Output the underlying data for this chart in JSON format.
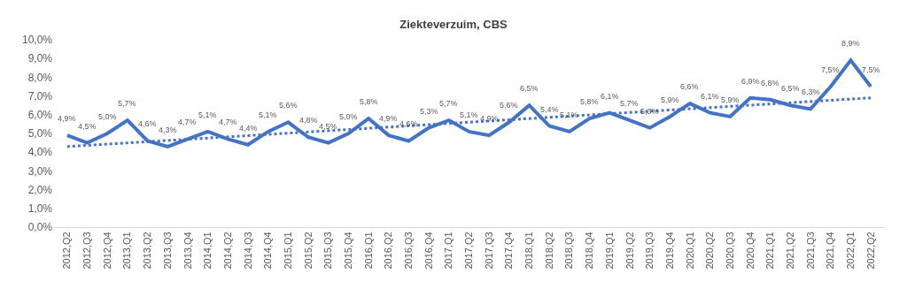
{
  "chart_data": {
    "type": "line",
    "title": "Ziekteverzuim, CBS",
    "categories": [
      "2012,Q2",
      "2012,Q3",
      "2012,Q4",
      "2013,Q1",
      "2013,Q2",
      "2013,Q3",
      "2013,Q4",
      "2014,Q1",
      "2014,Q2",
      "2014,Q3",
      "2014,Q4",
      "2015,Q1",
      "2015,Q2",
      "2015,Q3",
      "2015,Q4",
      "2016,Q1",
      "2016,Q2",
      "2016,Q3",
      "2016,Q4",
      "2017,Q1",
      "2017,Q2",
      "2017,Q3",
      "2017,Q4",
      "2018,Q1",
      "2018,Q2",
      "2018,Q3",
      "2018,Q4",
      "2019,Q1",
      "2019,Q2",
      "2019,Q3",
      "2019,Q4",
      "2020,Q1",
      "2020,Q2",
      "2020,Q3",
      "2020,Q4",
      "2021,Q1",
      "2021,Q2",
      "2021,Q3",
      "2021,Q4",
      "2022,Q1",
      "2022,Q2"
    ],
    "series": [
      {
        "color": "#4472c4",
        "line_style": "solid",
        "values": [
          4.9,
          4.5,
          5.0,
          5.7,
          4.6,
          4.3,
          4.7,
          5.1,
          4.7,
          4.4,
          5.1,
          5.6,
          4.8,
          4.5,
          5.0,
          5.8,
          4.9,
          4.6,
          5.3,
          5.7,
          5.1,
          4.9,
          5.6,
          6.5,
          5.4,
          5.1,
          5.8,
          6.1,
          5.7,
          5.3,
          5.9,
          6.6,
          6.1,
          5.9,
          6.9,
          6.8,
          6.5,
          6.3,
          7.5,
          8.9,
          7.5
        ],
        "value_labels": [
          "4,9%",
          "4,5%",
          "5,0%",
          "5,7%",
          "4,6%",
          "4,3%",
          "4,7%",
          "5,1%",
          "4,7%",
          "4,4%",
          "5,1%",
          "5,6%",
          "4,8%",
          "4,5%",
          "5,0%",
          "5,8%",
          "4,9%",
          "4,6%",
          "5,3%",
          "5,7%",
          "5,1%",
          "4,9%",
          "5,6%",
          "6,5%",
          "5,4%",
          "5,1%",
          "5,8%",
          "6,1%",
          "5,7%",
          "5,3%",
          "5,9%",
          "6,6%",
          "6,1%",
          "5,9%",
          "6,9%",
          "6,8%",
          "6,5%",
          "6,3%",
          "7,5%",
          "8,9%",
          "7,5%"
        ]
      },
      {
        "type": "line",
        "color": "#4472c4",
        "line_style": "dotted",
        "x": [
          "2012,Q2",
          "2022,Q2"
        ],
        "values": [
          4.3,
          6.9
        ]
      }
    ],
    "ylim": [
      0,
      10
    ],
    "yticks": [
      {
        "value": 0,
        "label": "0,0%"
      },
      {
        "value": 1,
        "label": "1,0%"
      },
      {
        "value": 2,
        "label": "2,0%"
      },
      {
        "value": 3,
        "label": "3,0%"
      },
      {
        "value": 4,
        "label": "4,0%"
      },
      {
        "value": 5,
        "label": "5,0%"
      },
      {
        "value": 6,
        "label": "6,0%"
      },
      {
        "value": 7,
        "label": "7,0%"
      },
      {
        "value": 8,
        "label": "8,0%"
      },
      {
        "value": 9,
        "label": "9,0%"
      },
      {
        "value": 10,
        "label": "10,0%"
      }
    ],
    "marker": "none"
  }
}
